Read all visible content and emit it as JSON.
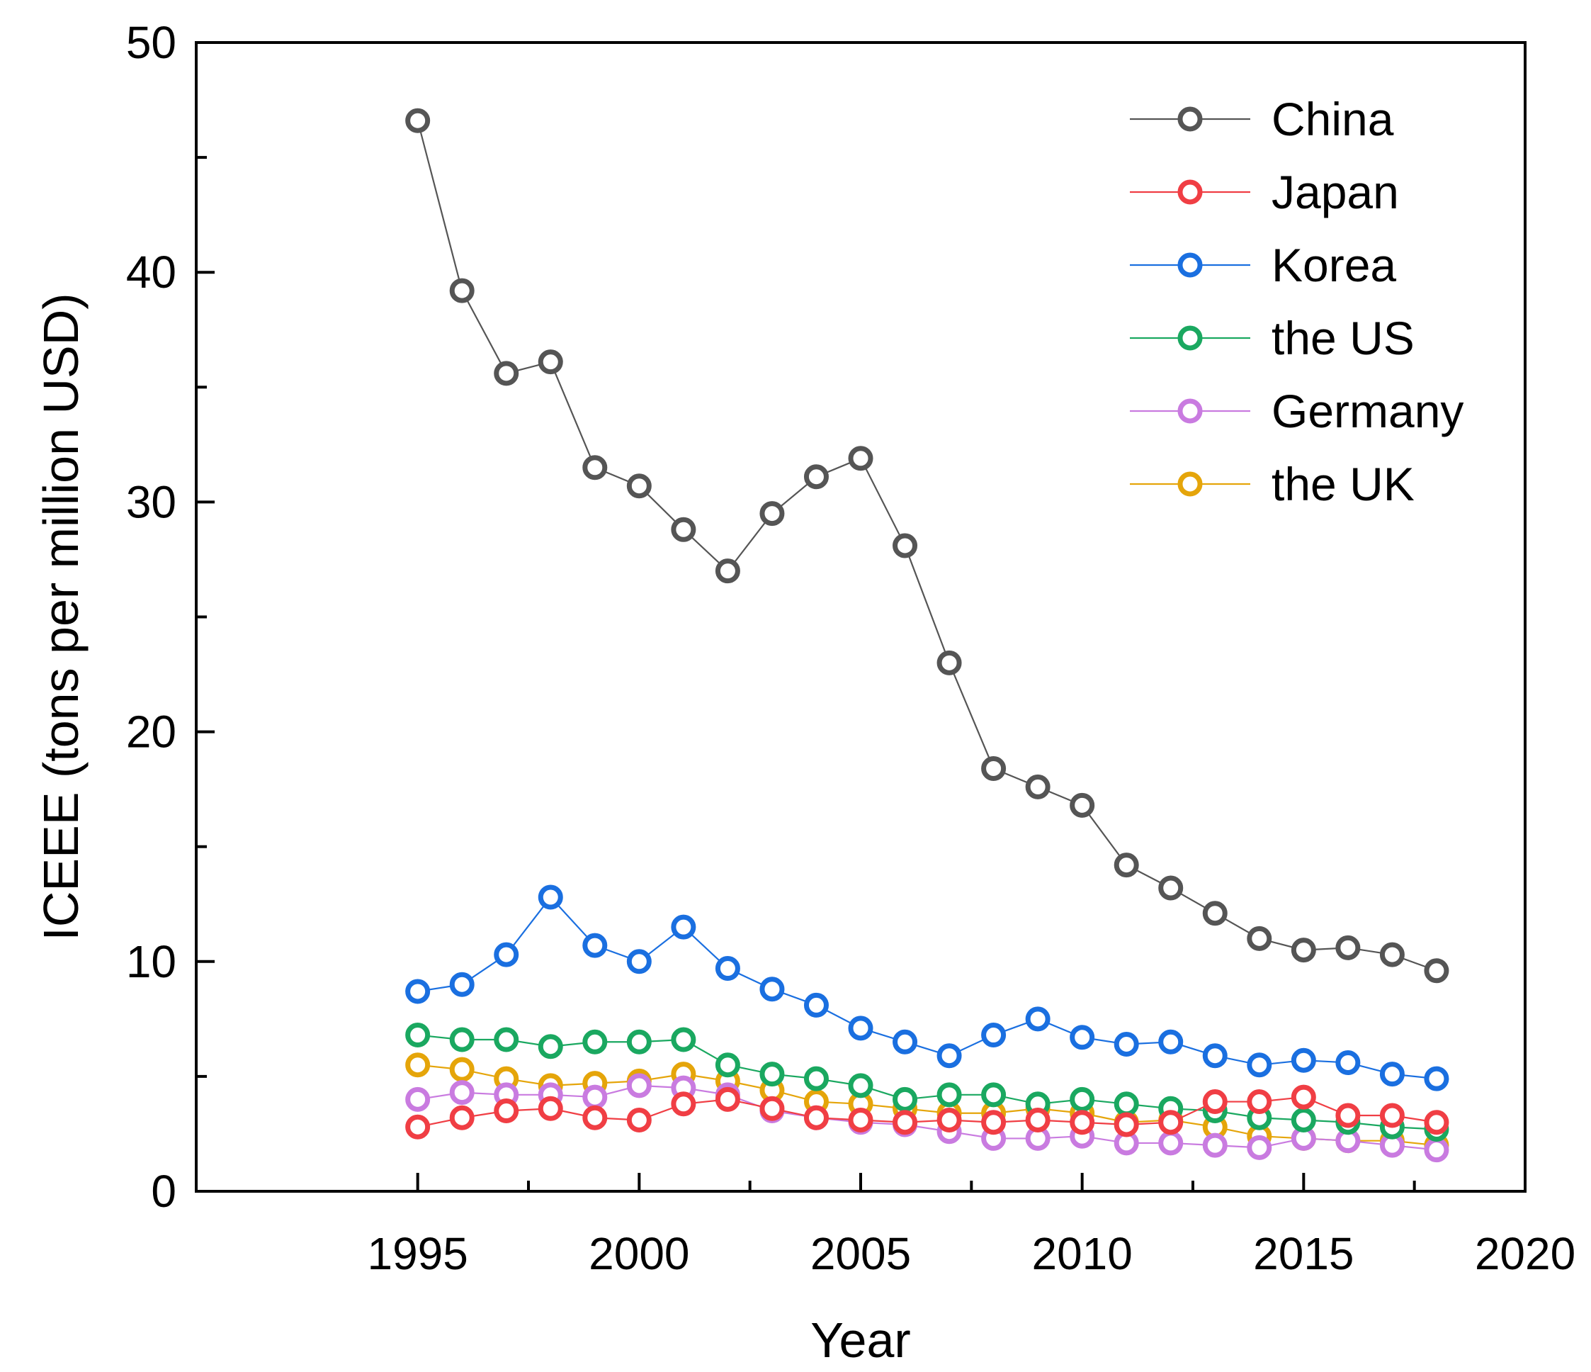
{
  "chart_data": {
    "type": "line",
    "title": "",
    "xlabel": "Year",
    "ylabel": "ICEEE (tons per million USD)",
    "xlim": [
      1990,
      2020
    ],
    "ylim": [
      0,
      50
    ],
    "x_major_ticks": [
      1995,
      2000,
      2005,
      2010,
      2015,
      2020
    ],
    "x_minor_ticks": [
      1997.5,
      2002.5,
      2007.5,
      2012.5,
      2017.5
    ],
    "y_major_ticks": [
      0,
      10,
      20,
      30,
      40,
      50
    ],
    "y_minor_ticks": [
      5,
      15,
      25,
      35,
      45
    ],
    "x_tick_labels": [
      "1995",
      "2000",
      "2005",
      "2010",
      "2015",
      "2020"
    ],
    "y_tick_labels": [
      "0",
      "10",
      "20",
      "30",
      "40",
      "50"
    ],
    "grid": false,
    "legend_position": "top-right",
    "x": [
      1995,
      1996,
      1997,
      1998,
      1999,
      2000,
      2001,
      2002,
      2003,
      2004,
      2005,
      2006,
      2007,
      2008,
      2009,
      2010,
      2011,
      2012,
      2013,
      2014,
      2015,
      2016,
      2017,
      2018
    ],
    "series": [
      {
        "name": "China",
        "color": "#555555",
        "values": [
          46.6,
          39.2,
          35.6,
          36.1,
          31.5,
          30.7,
          28.8,
          27.0,
          29.5,
          31.1,
          31.9,
          28.1,
          23.0,
          18.4,
          17.6,
          16.8,
          14.2,
          13.2,
          12.1,
          11.0,
          10.5,
          10.6,
          10.3,
          9.6
        ]
      },
      {
        "name": "Japan",
        "color": "#f03e44",
        "values": [
          2.8,
          3.2,
          3.5,
          3.6,
          3.2,
          3.1,
          3.8,
          4.0,
          3.6,
          3.2,
          3.1,
          3.0,
          3.1,
          3.0,
          3.1,
          3.0,
          2.9,
          3.0,
          3.9,
          3.9,
          4.1,
          3.3,
          3.3,
          3.0
        ]
      },
      {
        "name": "Korea",
        "color": "#1a6fe0",
        "values": [
          8.7,
          9.0,
          10.3,
          12.8,
          10.7,
          10.0,
          11.5,
          9.7,
          8.8,
          8.1,
          7.1,
          6.5,
          5.9,
          6.8,
          7.5,
          6.7,
          6.4,
          6.5,
          5.9,
          5.5,
          5.7,
          5.6,
          5.1,
          4.9
        ]
      },
      {
        "name": "the US",
        "color": "#1aa860",
        "values": [
          6.8,
          6.6,
          6.6,
          6.3,
          6.5,
          6.5,
          6.6,
          5.5,
          5.1,
          4.9,
          4.6,
          4.0,
          4.2,
          4.2,
          3.8,
          4.0,
          3.8,
          3.6,
          3.5,
          3.2,
          3.1,
          3.0,
          2.8,
          2.7
        ]
      },
      {
        "name": "Germany",
        "color": "#c97be0",
        "values": [
          4.0,
          4.3,
          4.2,
          4.2,
          4.1,
          4.6,
          4.5,
          4.2,
          3.5,
          3.2,
          3.0,
          2.9,
          2.6,
          2.3,
          2.3,
          2.4,
          2.1,
          2.1,
          2.0,
          1.9,
          2.3,
          2.2,
          2.0,
          1.8
        ]
      },
      {
        "name": "the UK",
        "color": "#e5a50a",
        "values": [
          5.5,
          5.3,
          4.9,
          4.6,
          4.7,
          4.8,
          5.1,
          4.8,
          4.4,
          3.9,
          3.8,
          3.6,
          3.4,
          3.4,
          3.6,
          3.4,
          3.0,
          3.1,
          2.8,
          2.4,
          2.3,
          2.2,
          2.2,
          2.0
        ]
      }
    ]
  }
}
